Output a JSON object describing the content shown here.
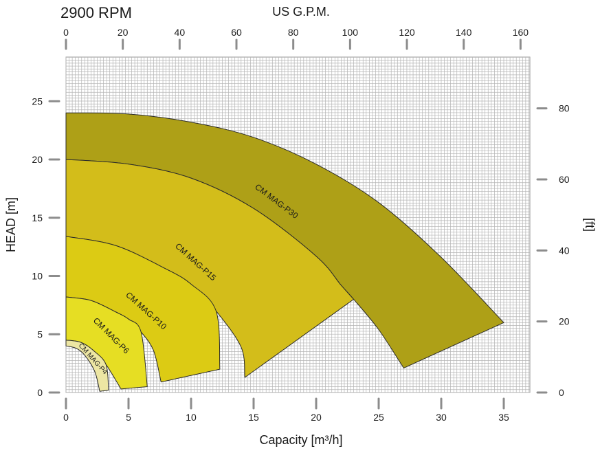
{
  "header": {
    "rpm_label": "2900 RPM",
    "top_axis_label": "US G.P.M."
  },
  "chart_data": {
    "type": "area",
    "xlabel": "Capacity  [m³/h]",
    "ylabel": "HEAD [m]",
    "y2label": "[ft]",
    "x2label": "US G.P.M.",
    "xlim": [
      0,
      37
    ],
    "ylim": [
      0,
      28
    ],
    "x_ticks": [
      0,
      5,
      10,
      15,
      20,
      25,
      30,
      35
    ],
    "y_ticks": [
      0,
      5,
      10,
      15,
      20,
      25
    ],
    "top_ticks_gpm": [
      0,
      20,
      40,
      60,
      80,
      100,
      120,
      140,
      160
    ],
    "right_ticks_ft": [
      0,
      20,
      40,
      60,
      80
    ],
    "grid": true,
    "colors": {
      "CM MAG-P30": "#aea017",
      "CM MAG-P15": "#d3bd1a",
      "CM MAG-P10": "#dccb14",
      "CM MAG-P6": "#e6de23",
      "CM MAG-P4": "#ede6a3"
    },
    "series": [
      {
        "name": "CM MAG-P30",
        "upper": [
          [
            0,
            24
          ],
          [
            5,
            23.9
          ],
          [
            10,
            23.2
          ],
          [
            15,
            21.9
          ],
          [
            20,
            19.6
          ],
          [
            25,
            16.3
          ],
          [
            30,
            11.6
          ],
          [
            35,
            6
          ]
        ],
        "lower": [
          [
            0,
            20
          ],
          [
            5,
            19.6
          ],
          [
            10,
            18.4
          ],
          [
            15,
            15.8
          ],
          [
            20,
            11.7
          ],
          [
            22,
            9.2
          ],
          [
            23,
            8
          ],
          [
            25,
            5.4
          ],
          [
            27,
            2.1
          ]
        ]
      },
      {
        "name": "CM MAG-P15",
        "upper": [
          [
            0,
            20
          ],
          [
            5,
            19.6
          ],
          [
            10,
            18.4
          ],
          [
            15,
            15.8
          ],
          [
            20,
            11.7
          ],
          [
            22,
            9.2
          ],
          [
            23,
            8
          ]
        ],
        "lower": [
          [
            0,
            13.4
          ],
          [
            4,
            12.6
          ],
          [
            8,
            10.6
          ],
          [
            10,
            9.3
          ],
          [
            12,
            7
          ],
          [
            14,
            3.9
          ],
          [
            14.3,
            1.3
          ]
        ]
      },
      {
        "name": "CM MAG-P10",
        "upper": [
          [
            0,
            13.4
          ],
          [
            4,
            12.6
          ],
          [
            8,
            10.6
          ],
          [
            10,
            9.3
          ],
          [
            12,
            7
          ],
          [
            12.3,
            2
          ]
        ],
        "lower": [
          [
            0,
            8.2
          ],
          [
            2,
            7.9
          ],
          [
            4,
            6.9
          ],
          [
            5,
            6.3
          ],
          [
            6,
            5.2
          ],
          [
            7,
            3.6
          ],
          [
            7.6,
            0.9
          ]
        ]
      },
      {
        "name": "CM MAG-P6",
        "upper": [
          [
            0,
            8.2
          ],
          [
            2,
            7.9
          ],
          [
            4,
            6.9
          ],
          [
            5,
            6.3
          ],
          [
            6,
            5.2
          ],
          [
            6.5,
            0.5
          ]
        ],
        "lower": [
          [
            0,
            4.5
          ],
          [
            1.2,
            4.3
          ],
          [
            2.2,
            3.6
          ],
          [
            3.2,
            2.4
          ],
          [
            4.4,
            0.3
          ]
        ]
      },
      {
        "name": "CM MAG-P4",
        "upper": [
          [
            0,
            4.5
          ],
          [
            1.2,
            4.3
          ],
          [
            2.2,
            3.6
          ],
          [
            3.2,
            2.4
          ],
          [
            3.4,
            0.2
          ]
        ],
        "lower": [
          [
            0,
            4
          ],
          [
            0.8,
            3.8
          ],
          [
            1.5,
            3.2
          ],
          [
            2.3,
            1.8
          ],
          [
            2.7,
            0.1
          ]
        ]
      }
    ]
  }
}
